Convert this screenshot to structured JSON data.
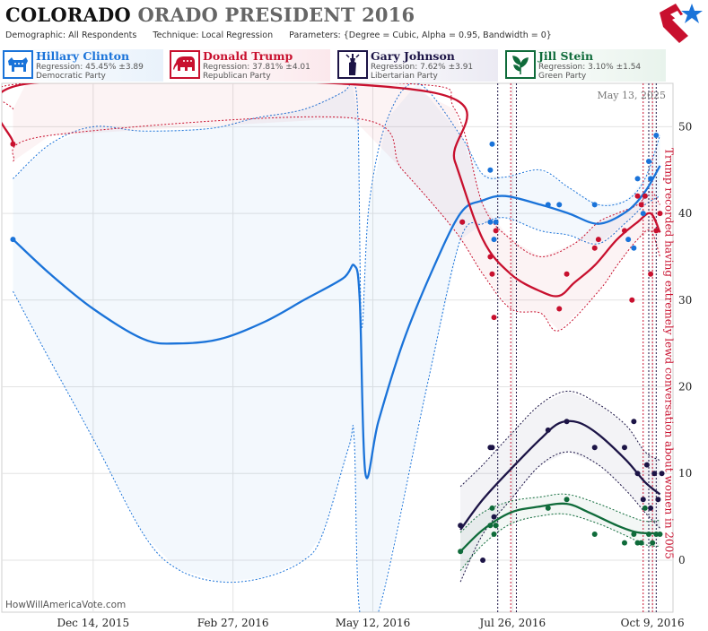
{
  "header": {
    "title_state": "COLORADO",
    "title_rest": "ORADO PRESIDENT 2016",
    "demographic_label": "Demographic:",
    "demographic_value": "All Respondents",
    "technique_label": "Technique:",
    "technique_value": "Local Regression",
    "parameters_label": "Parameters:",
    "parameters_value": "{Degree = Cubic, Alpha = 0.95, Bandwidth = 0}"
  },
  "candidates": [
    {
      "name": "Hillary Clinton",
      "regression": "Regression: 45.45% ±3.89",
      "party": "Democratic Party",
      "color": "#1a73d9",
      "icon": "donkey-icon"
    },
    {
      "name": "Donald Trump",
      "regression": "Regression: 37.81% ±4.01",
      "party": "Republican Party",
      "color": "#c8102e",
      "icon": "elephant-icon"
    },
    {
      "name": "Gary Johnson",
      "regression": "Regression: 7.62% ±3.91",
      "party": "Libertarian Party",
      "color": "#1c1446",
      "icon": "liberty-torch-icon"
    },
    {
      "name": "Jill Stein",
      "regression": "Regression: 3.10% ±1.54",
      "party": "Green Party",
      "color": "#0f6b3a",
      "icon": "leaf-icon"
    }
  ],
  "date_label": "May 13, 2025",
  "watermark": "HowWillAmericaVote.com",
  "annotation": "Trump recorded having extremely lewd conversation about women in 2005",
  "chart_data": {
    "type": "line",
    "x_axis": {
      "type": "date",
      "range": [
        "2015-10-26",
        "2016-10-20"
      ],
      "tick_labels": [
        "Dec 14, 2015",
        "Feb 27, 2016",
        "May 12, 2016",
        "Jul 26, 2016",
        "Oct 9, 2016"
      ],
      "tick_dates": [
        "2015-12-14",
        "2016-02-27",
        "2016-05-12",
        "2016-07-26",
        "2016-10-09"
      ]
    },
    "y_axis": {
      "range": [
        -6,
        55
      ],
      "ticks": [
        0,
        10,
        20,
        30,
        40,
        50
      ],
      "position": "right"
    },
    "grid": true,
    "vertical_markers": [
      "2016-07-18",
      "2016-07-25",
      "2016-07-28",
      "2016-10-04",
      "2016-10-07",
      "2016-10-09",
      "2016-10-11"
    ],
    "series": [
      {
        "name": "Hillary Clinton",
        "color": "#1a73d9",
        "trend": [
          [
            "2015-11-01",
            37
          ],
          [
            "2015-11-21",
            33
          ],
          [
            "2015-12-14",
            29
          ],
          [
            "2016-01-10",
            25.5
          ],
          [
            "2016-01-28",
            25
          ],
          [
            "2016-02-20",
            25.5
          ],
          [
            "2016-03-15",
            27.5
          ],
          [
            "2016-04-05",
            30
          ],
          [
            "2016-04-26",
            32.5
          ],
          [
            "2016-05-02",
            34
          ],
          [
            "2016-05-05",
            30
          ],
          [
            "2016-05-08",
            10
          ],
          [
            "2016-05-15",
            16
          ],
          [
            "2016-05-28",
            25
          ],
          [
            "2016-06-12",
            33
          ],
          [
            "2016-06-28",
            40
          ],
          [
            "2016-07-10",
            41.5
          ],
          [
            "2016-07-22",
            42
          ],
          [
            "2016-08-10",
            41
          ],
          [
            "2016-08-25",
            40
          ],
          [
            "2016-09-10",
            38.8
          ],
          [
            "2016-09-25",
            40.2
          ],
          [
            "2016-10-05",
            42.5
          ],
          [
            "2016-10-13",
            45.5
          ]
        ],
        "upper": [
          [
            "2015-11-01",
            44
          ],
          [
            "2015-11-21",
            48
          ],
          [
            "2015-12-14",
            50
          ],
          [
            "2016-01-10",
            49.5
          ],
          [
            "2016-02-15",
            49.8
          ],
          [
            "2016-03-10",
            51
          ],
          [
            "2016-04-05",
            52
          ],
          [
            "2016-04-26",
            54
          ],
          [
            "2016-05-01",
            55
          ],
          [
            "2016-05-04",
            51
          ],
          [
            "2016-05-06",
            27
          ],
          [
            "2016-05-10",
            41
          ],
          [
            "2016-05-20",
            51
          ],
          [
            "2016-06-05",
            55
          ],
          [
            "2016-06-28",
            49
          ],
          [
            "2016-07-10",
            44.5
          ],
          [
            "2016-07-22",
            44.2
          ],
          [
            "2016-08-10",
            45
          ],
          [
            "2016-08-25",
            43
          ],
          [
            "2016-09-10",
            41
          ],
          [
            "2016-09-25",
            41.5
          ],
          [
            "2016-10-05",
            44
          ],
          [
            "2016-10-13",
            49
          ]
        ],
        "lower": [
          [
            "2015-11-01",
            31
          ],
          [
            "2015-11-21",
            23
          ],
          [
            "2015-12-14",
            14
          ],
          [
            "2016-01-10",
            3
          ],
          [
            "2016-01-28",
            -1
          ],
          [
            "2016-02-20",
            -2.5
          ],
          [
            "2016-03-15",
            -2
          ],
          [
            "2016-04-05",
            0
          ],
          [
            "2016-04-15",
            3
          ],
          [
            "2016-04-29",
            13
          ],
          [
            "2016-05-02",
            14
          ],
          [
            "2016-05-05",
            -6
          ],
          [
            "2016-05-15",
            -6
          ],
          [
            "2016-06-10",
            20
          ],
          [
            "2016-06-28",
            37
          ],
          [
            "2016-07-10",
            38.8
          ],
          [
            "2016-07-22",
            39.5
          ],
          [
            "2016-08-10",
            38
          ],
          [
            "2016-08-25",
            37.5
          ],
          [
            "2016-09-10",
            36.5
          ],
          [
            "2016-09-25",
            39
          ],
          [
            "2016-10-05",
            41
          ],
          [
            "2016-10-13",
            42
          ]
        ],
        "points": [
          [
            "2015-11-01",
            37
          ],
          [
            "2016-06-29",
            39
          ],
          [
            "2016-07-14",
            45
          ],
          [
            "2016-07-14",
            39
          ],
          [
            "2016-07-15",
            48
          ],
          [
            "2016-07-16",
            37
          ],
          [
            "2016-07-17",
            39
          ],
          [
            "2016-08-14",
            41
          ],
          [
            "2016-08-20",
            41
          ],
          [
            "2016-09-08",
            41
          ],
          [
            "2016-09-26",
            37
          ],
          [
            "2016-09-29",
            36
          ],
          [
            "2016-10-01",
            44
          ],
          [
            "2016-10-04",
            40
          ],
          [
            "2016-10-05",
            42
          ],
          [
            "2016-10-07",
            46
          ],
          [
            "2016-10-08",
            44
          ],
          [
            "2016-10-11",
            49
          ]
        ]
      },
      {
        "name": "Donald Trump",
        "color": "#c8102e",
        "trend": [
          [
            "2015-11-01",
            48
          ],
          [
            "2015-11-10",
            55
          ],
          [
            "2016-06-12",
            54
          ],
          [
            "2016-06-25",
            46
          ],
          [
            "2016-07-10",
            37
          ],
          [
            "2016-07-25",
            33
          ],
          [
            "2016-08-10",
            31
          ],
          [
            "2016-08-20",
            30.5
          ],
          [
            "2016-08-28",
            32
          ],
          [
            "2016-09-08",
            34
          ],
          [
            "2016-09-20",
            37
          ],
          [
            "2016-10-01",
            39
          ],
          [
            "2016-10-08",
            40
          ],
          [
            "2016-10-13",
            37.8
          ]
        ],
        "upper": [
          [
            "2015-11-01",
            52
          ],
          [
            "2015-11-08",
            55
          ],
          [
            "2016-05-28",
            55
          ],
          [
            "2016-06-25",
            52
          ],
          [
            "2016-07-10",
            41
          ],
          [
            "2016-07-25",
            37
          ],
          [
            "2016-08-10",
            35
          ],
          [
            "2016-08-28",
            36.5
          ],
          [
            "2016-09-10",
            39
          ],
          [
            "2016-09-20",
            40
          ],
          [
            "2016-10-01",
            41
          ],
          [
            "2016-10-08",
            42.5
          ],
          [
            "2016-10-13",
            41
          ]
        ],
        "lower": [
          [
            "2015-11-01",
            46
          ],
          [
            "2015-11-21",
            49
          ],
          [
            "2016-05-01",
            51
          ],
          [
            "2016-05-28",
            45
          ],
          [
            "2016-06-25",
            38
          ],
          [
            "2016-07-10",
            33
          ],
          [
            "2016-07-25",
            29
          ],
          [
            "2016-08-10",
            28.5
          ],
          [
            "2016-08-20",
            26.5
          ],
          [
            "2016-09-10",
            31
          ],
          [
            "2016-09-20",
            34
          ],
          [
            "2016-10-01",
            37
          ],
          [
            "2016-10-08",
            38
          ],
          [
            "2016-10-13",
            35
          ]
        ],
        "points": [
          [
            "2015-11-01",
            48
          ],
          [
            "2016-06-29",
            39
          ],
          [
            "2016-07-14",
            35
          ],
          [
            "2016-07-15",
            33
          ],
          [
            "2016-07-16",
            28
          ],
          [
            "2016-07-17",
            38
          ],
          [
            "2016-08-20",
            29
          ],
          [
            "2016-08-24",
            33
          ],
          [
            "2016-09-08",
            36
          ],
          [
            "2016-09-10",
            37
          ],
          [
            "2016-09-24",
            38
          ],
          [
            "2016-09-28",
            30
          ],
          [
            "2016-10-01",
            42
          ],
          [
            "2016-10-03",
            41
          ],
          [
            "2016-10-05",
            42
          ],
          [
            "2016-10-08",
            33
          ],
          [
            "2016-10-11",
            38
          ],
          [
            "2016-10-13",
            40
          ]
        ]
      },
      {
        "name": "Gary Johnson",
        "color": "#1c1446",
        "trend": [
          [
            "2016-06-28",
            3.5
          ],
          [
            "2016-07-10",
            7
          ],
          [
            "2016-07-25",
            10.5
          ],
          [
            "2016-08-10",
            14
          ],
          [
            "2016-08-20",
            15.8
          ],
          [
            "2016-08-30",
            15.9
          ],
          [
            "2016-09-10",
            14.5
          ],
          [
            "2016-09-25",
            11.5
          ],
          [
            "2016-10-05",
            9
          ],
          [
            "2016-10-13",
            7.6
          ]
        ],
        "upper": [
          [
            "2016-06-28",
            8.5
          ],
          [
            "2016-07-10",
            11
          ],
          [
            "2016-07-25",
            14.5
          ],
          [
            "2016-08-10",
            18
          ],
          [
            "2016-08-25",
            19.5
          ],
          [
            "2016-09-10",
            18
          ],
          [
            "2016-09-25",
            15.5
          ],
          [
            "2016-10-05",
            12.5
          ],
          [
            "2016-10-13",
            11.5
          ]
        ],
        "lower": [
          [
            "2016-06-28",
            -2.5
          ],
          [
            "2016-07-10",
            3
          ],
          [
            "2016-07-25",
            7
          ],
          [
            "2016-08-10",
            11
          ],
          [
            "2016-08-25",
            12.5
          ],
          [
            "2016-09-10",
            11
          ],
          [
            "2016-09-25",
            8
          ],
          [
            "2016-10-05",
            5.5
          ],
          [
            "2016-10-13",
            3.7
          ]
        ],
        "points": [
          [
            "2016-06-28",
            4
          ],
          [
            "2016-07-10",
            0
          ],
          [
            "2016-07-14",
            13
          ],
          [
            "2016-07-15",
            13
          ],
          [
            "2016-07-16",
            5
          ],
          [
            "2016-07-17",
            4
          ],
          [
            "2016-08-14",
            15
          ],
          [
            "2016-08-24",
            16
          ],
          [
            "2016-09-08",
            13
          ],
          [
            "2016-09-24",
            13
          ],
          [
            "2016-09-29",
            16
          ],
          [
            "2016-10-01",
            10
          ],
          [
            "2016-10-04",
            7
          ],
          [
            "2016-10-06",
            11
          ],
          [
            "2016-10-08",
            6
          ],
          [
            "2016-10-10",
            10
          ],
          [
            "2016-10-12",
            7
          ],
          [
            "2016-10-14",
            10
          ]
        ]
      },
      {
        "name": "Jill Stein",
        "color": "#0f6b3a",
        "trend": [
          [
            "2016-06-28",
            1
          ],
          [
            "2016-07-10",
            3.5
          ],
          [
            "2016-07-25",
            5.5
          ],
          [
            "2016-08-10",
            6.2
          ],
          [
            "2016-08-24",
            6.5
          ],
          [
            "2016-09-05",
            5.5
          ],
          [
            "2016-09-20",
            4
          ],
          [
            "2016-10-01",
            3.2
          ],
          [
            "2016-10-13",
            3.1
          ]
        ],
        "upper": [
          [
            "2016-06-28",
            3.2
          ],
          [
            "2016-07-10",
            5.5
          ],
          [
            "2016-07-25",
            6.8
          ],
          [
            "2016-08-10",
            7.3
          ],
          [
            "2016-08-24",
            7.6
          ],
          [
            "2016-09-10",
            6.5
          ],
          [
            "2016-09-25",
            5.2
          ],
          [
            "2016-10-05",
            4.5
          ],
          [
            "2016-10-13",
            4.6
          ]
        ],
        "lower": [
          [
            "2016-06-28",
            -1.2
          ],
          [
            "2016-07-10",
            1.8
          ],
          [
            "2016-07-25",
            4.2
          ],
          [
            "2016-08-10",
            5.1
          ],
          [
            "2016-08-24",
            5.3
          ],
          [
            "2016-09-10",
            4.2
          ],
          [
            "2016-09-25",
            2.8
          ],
          [
            "2016-10-05",
            1.8
          ],
          [
            "2016-10-13",
            1.6
          ]
        ],
        "points": [
          [
            "2016-06-28",
            1
          ],
          [
            "2016-07-14",
            4
          ],
          [
            "2016-07-15",
            6
          ],
          [
            "2016-07-16",
            3
          ],
          [
            "2016-07-17",
            4
          ],
          [
            "2016-08-14",
            6
          ],
          [
            "2016-08-24",
            7
          ],
          [
            "2016-09-08",
            3
          ],
          [
            "2016-09-24",
            2
          ],
          [
            "2016-09-29",
            3
          ],
          [
            "2016-10-01",
            2
          ],
          [
            "2016-10-03",
            2
          ],
          [
            "2016-10-05",
            6
          ],
          [
            "2016-10-07",
            3
          ],
          [
            "2016-10-09",
            2
          ],
          [
            "2016-10-11",
            3
          ],
          [
            "2016-10-13",
            3
          ]
        ]
      }
    ]
  }
}
